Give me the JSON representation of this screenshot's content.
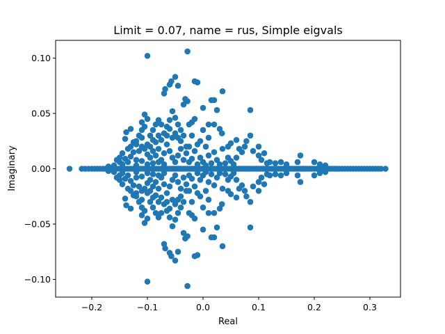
{
  "chart_data": {
    "type": "scatter",
    "title": "Limit = 0.07, name = rus, Simple eigvals",
    "xlabel": "Real",
    "ylabel": "Imaginary",
    "xlim": [
      -0.265,
      0.355
    ],
    "ylim": [
      -0.116,
      0.116
    ],
    "xticks": [
      -0.2,
      -0.1,
      0.0,
      0.1,
      0.2,
      0.3
    ],
    "yticks": [
      -0.1,
      -0.05,
      0.0,
      0.05,
      0.1
    ],
    "xtick_labels": [
      "−0.2",
      "−0.1",
      "0.0",
      "0.1",
      "0.2",
      "0.3"
    ],
    "ytick_labels": [
      "−0.10",
      "−0.05",
      "0.00",
      "0.05",
      "0.10"
    ],
    "grid": false,
    "color": "#1f77b4",
    "marker": "circle",
    "real_axis_points_x": [
      -0.24,
      -0.218,
      -0.212,
      -0.206,
      -0.2,
      -0.195,
      -0.19,
      -0.185,
      -0.18,
      -0.176,
      -0.172,
      -0.168,
      -0.164,
      -0.16,
      -0.156,
      -0.152,
      -0.148,
      -0.144,
      -0.14,
      -0.136,
      -0.132,
      -0.128,
      -0.124,
      -0.12,
      -0.116,
      -0.112,
      -0.108,
      -0.104,
      -0.1,
      -0.096,
      -0.092,
      -0.088,
      -0.084,
      -0.08,
      -0.076,
      -0.072,
      -0.068,
      -0.064,
      -0.06,
      -0.056,
      -0.052,
      -0.048,
      -0.044,
      -0.04,
      -0.036,
      -0.032,
      -0.028,
      -0.024,
      -0.02,
      -0.016,
      -0.012,
      -0.008,
      -0.004,
      0.0,
      0.004,
      0.008,
      0.012,
      0.016,
      0.02,
      0.024,
      0.028,
      0.032,
      0.036,
      0.04,
      0.044,
      0.048,
      0.052,
      0.056,
      0.06,
      0.064,
      0.068,
      0.072,
      0.076,
      0.08,
      0.084,
      0.088,
      0.092,
      0.096,
      0.1,
      0.104,
      0.108,
      0.112,
      0.116,
      0.12,
      0.124,
      0.128,
      0.132,
      0.136,
      0.14,
      0.144,
      0.148,
      0.152,
      0.156,
      0.16,
      0.164,
      0.168,
      0.172,
      0.176,
      0.18,
      0.184,
      0.188,
      0.192,
      0.196,
      0.2,
      0.204,
      0.208,
      0.212,
      0.216,
      0.22,
      0.224,
      0.228,
      0.232,
      0.236,
      0.24,
      0.245,
      0.25,
      0.255,
      0.26,
      0.265,
      0.27,
      0.275,
      0.28,
      0.285,
      0.29,
      0.295,
      0.3,
      0.305,
      0.31,
      0.315,
      0.32,
      0.328
    ],
    "conjugate_pairs": [
      [
        -0.1,
        0.102
      ],
      [
        -0.028,
        0.106
      ],
      [
        -0.05,
        0.083
      ],
      [
        -0.057,
        0.079
      ],
      [
        -0.06,
        0.076
      ],
      [
        -0.07,
        0.068
      ],
      [
        -0.068,
        0.072
      ],
      [
        -0.045,
        0.075
      ],
      [
        -0.032,
        0.063
      ],
      [
        -0.028,
        0.061
      ],
      [
        -0.035,
        0.058
      ],
      [
        -0.01,
        0.078
      ],
      [
        -0.015,
        0.079
      ],
      [
        0.015,
        0.062
      ],
      [
        0.02,
        0.062
      ],
      [
        0.035,
        0.07
      ],
      [
        0.0,
        0.055
      ],
      [
        0.025,
        0.053
      ],
      [
        0.085,
        0.053
      ],
      [
        0.01,
        0.04
      ],
      [
        0.02,
        0.04
      ],
      [
        0.03,
        0.036
      ],
      [
        0.034,
        0.032
      ],
      [
        0.075,
        0.02
      ],
      [
        0.078,
        0.025
      ],
      [
        0.085,
        0.03
      ],
      [
        0.045,
        0.02
      ],
      [
        0.05,
        0.023
      ],
      [
        0.06,
        0.026
      ],
      [
        0.02,
        0.015
      ],
      [
        0.035,
        0.018
      ],
      [
        0.05,
        0.007
      ],
      [
        0.06,
        0.01
      ],
      [
        0.065,
        0.018
      ],
      [
        0.07,
        0.015
      ],
      [
        0.09,
        0.016
      ],
      [
        0.1,
        0.012
      ],
      [
        0.105,
        0.008
      ],
      [
        0.11,
        0.014
      ],
      [
        0.115,
        0.005
      ],
      [
        0.12,
        0.006
      ],
      [
        0.13,
        0.005
      ],
      [
        0.14,
        0.006
      ],
      [
        0.15,
        0.004
      ],
      [
        0.17,
        0.006
      ],
      [
        0.175,
        0.012
      ],
      [
        0.2,
        0.006
      ],
      [
        0.21,
        0.004
      ],
      [
        0.22,
        0.003
      ],
      [
        0.1,
        0.02
      ],
      [
        0.01,
        0.028
      ],
      [
        -0.02,
        0.03
      ],
      [
        -0.025,
        0.02
      ],
      [
        -0.03,
        0.02
      ],
      [
        -0.035,
        0.03
      ],
      [
        -0.04,
        0.035
      ],
      [
        -0.045,
        0.04
      ],
      [
        -0.05,
        0.046
      ],
      [
        -0.055,
        0.052
      ],
      [
        -0.06,
        0.044
      ],
      [
        -0.065,
        0.038
      ],
      [
        -0.07,
        0.032
      ],
      [
        -0.075,
        0.026
      ],
      [
        -0.08,
        0.044
      ],
      [
        -0.085,
        0.04
      ],
      [
        -0.09,
        0.035
      ],
      [
        -0.095,
        0.03
      ],
      [
        -0.1,
        0.045
      ],
      [
        -0.105,
        0.049
      ],
      [
        -0.11,
        0.035
      ],
      [
        -0.115,
        0.03
      ],
      [
        -0.12,
        0.022
      ],
      [
        -0.125,
        0.015
      ],
      [
        -0.13,
        0.011
      ],
      [
        -0.135,
        0.006
      ],
      [
        -0.14,
        0.009
      ],
      [
        -0.145,
        0.004
      ],
      [
        -0.15,
        0.006
      ],
      [
        -0.16,
        0.003
      ],
      [
        -0.17,
        0.002
      ],
      [
        -0.135,
        0.018
      ],
      [
        -0.14,
        0.027
      ],
      [
        -0.138,
        0.033
      ],
      [
        -0.13,
        0.036
      ],
      [
        -0.12,
        0.025
      ],
      [
        -0.11,
        0.028
      ],
      [
        -0.105,
        0.018
      ],
      [
        -0.1,
        0.013
      ],
      [
        -0.095,
        0.02
      ],
      [
        -0.09,
        0.026
      ],
      [
        -0.085,
        0.012
      ],
      [
        -0.08,
        0.018
      ],
      [
        -0.075,
        0.008
      ],
      [
        -0.07,
        0.014
      ],
      [
        -0.065,
        0.022
      ],
      [
        -0.06,
        0.016
      ],
      [
        -0.055,
        0.01
      ],
      [
        -0.05,
        0.006
      ],
      [
        -0.045,
        0.012
      ],
      [
        -0.04,
        0.018
      ],
      [
        -0.035,
        0.008
      ],
      [
        -0.03,
        0.014
      ],
      [
        -0.025,
        0.006
      ],
      [
        -0.02,
        0.009
      ],
      [
        -0.015,
        0.016
      ],
      [
        -0.01,
        0.004
      ],
      [
        -0.005,
        0.01
      ],
      [
        0.0,
        0.006
      ],
      [
        0.005,
        0.003
      ],
      [
        0.01,
        0.012
      ],
      [
        0.015,
        0.005
      ],
      [
        0.025,
        0.008
      ],
      [
        0.03,
        0.004
      ],
      [
        0.04,
        0.005
      ],
      [
        0.045,
        0.01
      ],
      [
        0.055,
        0.004
      ],
      [
        -0.015,
        0.045
      ],
      [
        -0.02,
        0.042
      ],
      [
        -0.025,
        0.04
      ],
      [
        -0.005,
        0.025
      ],
      [
        -0.01,
        0.022
      ],
      [
        0.0,
        0.035
      ],
      [
        0.005,
        0.02
      ],
      [
        -0.04,
        0.025
      ],
      [
        -0.045,
        0.028
      ],
      [
        -0.05,
        0.032
      ],
      [
        -0.055,
        0.028
      ],
      [
        -0.06,
        0.036
      ],
      [
        -0.065,
        0.03
      ],
      [
        -0.075,
        0.04
      ],
      [
        -0.08,
        0.03
      ],
      [
        -0.085,
        0.024
      ],
      [
        -0.09,
        0.016
      ],
      [
        -0.095,
        0.01
      ],
      [
        -0.1,
        0.022
      ],
      [
        -0.105,
        0.038
      ],
      [
        -0.11,
        0.042
      ],
      [
        -0.115,
        0.016
      ],
      [
        -0.12,
        0.008
      ],
      [
        -0.125,
        0.024
      ],
      [
        -0.13,
        0.02
      ],
      [
        -0.07,
        0.004
      ],
      [
        -0.08,
        0.006
      ],
      [
        -0.09,
        0.005
      ],
      [
        -0.1,
        0.004
      ],
      [
        -0.11,
        0.007
      ],
      [
        -0.12,
        0.003
      ],
      [
        -0.145,
        0.014
      ],
      [
        -0.15,
        0.01
      ],
      [
        -0.155,
        0.008
      ],
      [
        -0.11,
        0.02
      ]
    ]
  }
}
